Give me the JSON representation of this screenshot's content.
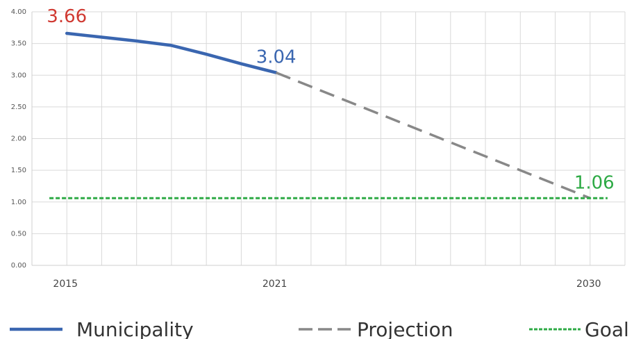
{
  "chart_data": {
    "type": "line",
    "title": "",
    "xlabel": "",
    "ylabel": "",
    "xlim": [
      2014,
      2031
    ],
    "ylim": [
      0,
      4
    ],
    "y_ticks": [
      "0.00",
      "0.50",
      "1.00",
      "1.50",
      "2.00",
      "2.50",
      "3.00",
      "3.50",
      "4.00"
    ],
    "x_ticks": [
      2015,
      2021,
      2030
    ],
    "x_tick_labels": [
      "2015",
      "2021",
      "2030"
    ],
    "grid": true,
    "legend": "bottom",
    "series": [
      {
        "name": "Municipality",
        "color": "#3a66b0",
        "style": "solid",
        "x": [
          2015,
          2016,
          2017,
          2018,
          2019,
          2020,
          2021
        ],
        "y": [
          3.66,
          3.6,
          3.54,
          3.47,
          3.33,
          3.18,
          3.04
        ]
      },
      {
        "name": "Projection",
        "color": "#888888",
        "style": "dashed",
        "x": [
          2021,
          2030
        ],
        "y": [
          3.04,
          1.06
        ]
      },
      {
        "name": "Goal",
        "color": "#2eaa45",
        "style": "dotted",
        "x": [
          2014.5,
          2030.5
        ],
        "y": [
          1.06,
          1.06
        ]
      }
    ],
    "annotations": [
      {
        "text": "3.66",
        "x": 2015,
        "y": 3.66,
        "color": "#d03a32"
      },
      {
        "text": "3.04",
        "x": 2021,
        "y": 3.04,
        "color": "#3a66b0"
      },
      {
        "text": "1.06",
        "x": 2030,
        "y": 1.06,
        "color": "#2eaa45"
      }
    ]
  }
}
